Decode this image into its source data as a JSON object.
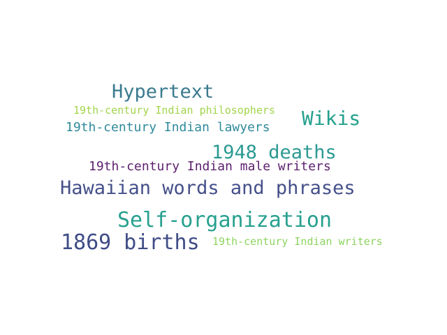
{
  "words": [
    {
      "text": "Hypertext",
      "color": "#3a7a8e"
    },
    {
      "text": "19th-century Indian philosophers",
      "color": "#a2d44a"
    },
    {
      "text": "Wikis",
      "color": "#24a08c"
    },
    {
      "text": "19th-century Indian lawyers",
      "color": "#2f8a9a"
    },
    {
      "text": "1948 deaths",
      "color": "#2a9a92"
    },
    {
      "text": "19th-century Indian male writers",
      "color": "#5c1f6e"
    },
    {
      "text": "Hawaiian words and phrases",
      "color": "#45508a"
    },
    {
      "text": "Self-organization",
      "color": "#27a08f"
    },
    {
      "text": "1869 births",
      "color": "#3f4c86"
    },
    {
      "text": "19th-century Indian writers",
      "color": "#8ed460"
    }
  ]
}
